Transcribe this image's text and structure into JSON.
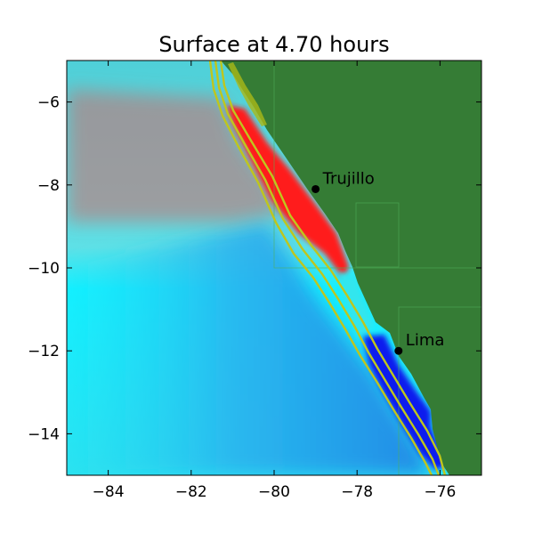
{
  "title": "Surface at 4.70 hours",
  "axes": {
    "xlim": [
      -85,
      -75
    ],
    "ylim": [
      -15,
      -5
    ],
    "x_ticks": [
      {
        "value": -84,
        "label": "−84"
      },
      {
        "value": -82,
        "label": "−82"
      },
      {
        "value": -80,
        "label": "−80"
      },
      {
        "value": -78,
        "label": "−78"
      },
      {
        "value": -76,
        "label": "−76"
      }
    ],
    "y_ticks": [
      {
        "value": -6,
        "label": "−6"
      },
      {
        "value": -8,
        "label": "−8"
      },
      {
        "value": -10,
        "label": "−10"
      },
      {
        "value": -12,
        "label": "−12"
      },
      {
        "value": -14,
        "label": "−14"
      }
    ]
  },
  "cities": [
    {
      "name": "Trujillo",
      "lon": -79.0,
      "lat": -8.1
    },
    {
      "name": "Lima",
      "lon": -77.0,
      "lat": -12.0
    }
  ],
  "colors": {
    "land": "#357c35",
    "ocean_deep": "#38a6ee",
    "ocean_mid": "#2ee6ee",
    "crest_red": "#ff1c1c",
    "trough_blue": "#0a1cee",
    "contour": "#bfc61d"
  }
}
